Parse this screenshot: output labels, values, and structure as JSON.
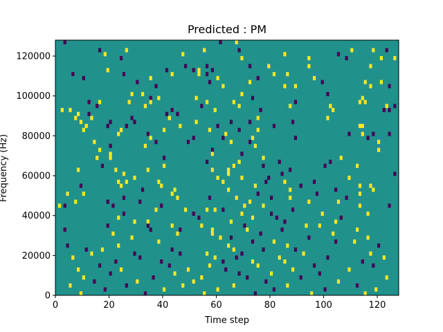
{
  "chart_data": {
    "type": "heatmap",
    "title": "Predicted : PM",
    "xlabel": "Time step",
    "ylabel": "Frequency (Hz)",
    "xlim": [
      0,
      128
    ],
    "ylim": [
      0,
      128000
    ],
    "x_ticks": [
      0,
      20,
      40,
      60,
      80,
      100,
      120
    ],
    "y_ticks": [
      0,
      20000,
      40000,
      60000,
      80000,
      100000,
      120000
    ],
    "n_time_steps": 128,
    "n_freq_bins": 64,
    "freq_bin_width_hz": 2000,
    "colormap": "viridis",
    "value_range": [
      -1,
      1
    ],
    "background_value": 0,
    "colors": {
      "low": "#440154",
      "mid": "#21918c",
      "high": "#fde725"
    },
    "nonzero_cells_note_units": "each entry is [time_step, freq_bin, value]",
    "cells": [
      [
        3,
        63,
        -1
      ],
      [
        61,
        63,
        -1
      ],
      [
        67,
        63,
        1
      ],
      [
        16,
        61,
        -1
      ],
      [
        26,
        61,
        1
      ],
      [
        55,
        61,
        1
      ],
      [
        68,
        61,
        -1
      ],
      [
        110,
        61,
        1
      ],
      [
        118,
        61,
        1
      ],
      [
        123,
        61,
        -1
      ],
      [
        18,
        60,
        1
      ],
      [
        47,
        60,
        1
      ],
      [
        85,
        60,
        1
      ],
      [
        105,
        60,
        -1
      ],
      [
        24,
        59,
        -1
      ],
      [
        69,
        59,
        1
      ],
      [
        94,
        59,
        1
      ],
      [
        108,
        59,
        -1
      ],
      [
        121,
        59,
        1
      ],
      [
        126,
        59,
        1
      ],
      [
        48,
        57,
        -1
      ],
      [
        56,
        57,
        -1
      ],
      [
        72,
        57,
        -1
      ],
      [
        79,
        57,
        1
      ],
      [
        94,
        57,
        1
      ],
      [
        117,
        57,
        1
      ],
      [
        19,
        56,
        1
      ],
      [
        41,
        56,
        -1
      ],
      [
        51,
        56,
        -1
      ],
      [
        53,
        56,
        1
      ],
      [
        58,
        56,
        -1
      ],
      [
        6,
        55,
        -1
      ],
      [
        25,
        55,
        -1
      ],
      [
        43,
        55,
        1
      ],
      [
        53,
        55,
        1
      ],
      [
        56,
        55,
        -1
      ],
      [
        81,
        55,
        1
      ],
      [
        86,
        55,
        1
      ],
      [
        10,
        54,
        -1
      ],
      [
        35,
        54,
        1
      ],
      [
        60,
        54,
        1
      ],
      [
        75,
        54,
        -1
      ],
      [
        96,
        54,
        1
      ],
      [
        30,
        53,
        -1
      ],
      [
        57,
        53,
        -1
      ],
      [
        72,
        53,
        1
      ],
      [
        99,
        53,
        -1
      ],
      [
        115,
        53,
        1
      ],
      [
        121,
        53,
        1
      ],
      [
        37,
        52,
        -1
      ],
      [
        62,
        52,
        1
      ],
      [
        85,
        52,
        1
      ],
      [
        89,
        52,
        1
      ],
      [
        117,
        52,
        1
      ],
      [
        124,
        52,
        -1
      ],
      [
        28,
        50,
        1
      ],
      [
        32,
        50,
        1
      ],
      [
        69,
        50,
        1
      ],
      [
        101,
        50,
        -1
      ],
      [
        35,
        49,
        -1
      ],
      [
        38,
        49,
        1
      ],
      [
        52,
        49,
        1
      ],
      [
        73,
        49,
        -1
      ],
      [
        114,
        49,
        1
      ],
      [
        12,
        48,
        -1
      ],
      [
        16,
        48,
        1
      ],
      [
        27,
        48,
        1
      ],
      [
        35,
        48,
        1
      ],
      [
        56,
        48,
        1
      ],
      [
        66,
        48,
        1
      ],
      [
        89,
        48,
        -1
      ],
      [
        113,
        48,
        1
      ],
      [
        115,
        48,
        1
      ],
      [
        15,
        47,
        -1
      ],
      [
        33,
        47,
        1
      ],
      [
        54,
        47,
        -1
      ],
      [
        68,
        47,
        1
      ],
      [
        87,
        47,
        1
      ],
      [
        102,
        47,
        1
      ],
      [
        123,
        47,
        1
      ],
      [
        126,
        47,
        -1
      ],
      [
        2,
        46,
        1
      ],
      [
        5,
        46,
        1
      ],
      [
        43,
        46,
        -1
      ],
      [
        59,
        46,
        1
      ],
      [
        76,
        46,
        -1
      ],
      [
        103,
        46,
        1
      ],
      [
        122,
        46,
        -1
      ],
      [
        124,
        46,
        -1
      ],
      [
        8,
        45,
        1
      ],
      [
        12,
        45,
        -1
      ],
      [
        41,
        45,
        -1
      ],
      [
        45,
        45,
        -1
      ],
      [
        7,
        44,
        1
      ],
      [
        13,
        44,
        1
      ],
      [
        28,
        44,
        -1
      ],
      [
        42,
        44,
        1
      ],
      [
        75,
        44,
        1
      ],
      [
        101,
        44,
        1
      ],
      [
        9,
        43,
        1
      ],
      [
        20,
        43,
        -1
      ],
      [
        29,
        43,
        -1
      ],
      [
        52,
        43,
        1
      ],
      [
        65,
        43,
        -1
      ],
      [
        72,
        43,
        -1
      ],
      [
        88,
        43,
        -1
      ],
      [
        11,
        42,
        1
      ],
      [
        19,
        42,
        -1
      ],
      [
        26,
        42,
        -1
      ],
      [
        46,
        42,
        1
      ],
      [
        60,
        42,
        -1
      ],
      [
        81,
        42,
        -1
      ],
      [
        113,
        42,
        1
      ],
      [
        114,
        42,
        1
      ],
      [
        10,
        41,
        1
      ],
      [
        24,
        41,
        1
      ],
      [
        40,
        41,
        1
      ],
      [
        57,
        41,
        1
      ],
      [
        68,
        41,
        -1
      ],
      [
        75,
        41,
        1
      ],
      [
        23,
        40,
        1
      ],
      [
        34,
        40,
        -1
      ],
      [
        63,
        40,
        1
      ],
      [
        109,
        40,
        -1
      ],
      [
        114,
        40,
        1
      ],
      [
        118,
        40,
        -1
      ],
      [
        124,
        40,
        -1
      ],
      [
        35,
        39,
        1
      ],
      [
        51,
        39,
        -1
      ],
      [
        62,
        39,
        -1
      ],
      [
        73,
        39,
        1
      ],
      [
        89,
        39,
        -1
      ],
      [
        116,
        39,
        -1
      ],
      [
        14,
        38,
        1
      ],
      [
        37,
        38,
        -1
      ],
      [
        49,
        38,
        -1
      ],
      [
        65,
        38,
        1
      ],
      [
        72,
        38,
        -1
      ],
      [
        120,
        38,
        1
      ],
      [
        20,
        37,
        -1
      ],
      [
        33,
        37,
        1
      ],
      [
        74,
        37,
        1
      ],
      [
        16,
        36,
        1
      ],
      [
        58,
        36,
        -1
      ],
      [
        120,
        36,
        1
      ],
      [
        20,
        35,
        1
      ],
      [
        58,
        35,
        1
      ],
      [
        69,
        35,
        -1
      ],
      [
        15,
        34,
        1
      ],
      [
        20,
        34,
        1
      ],
      [
        40,
        34,
        -1
      ],
      [
        77,
        34,
        1
      ],
      [
        106,
        34,
        1
      ],
      [
        56,
        33,
        -1
      ],
      [
        68,
        33,
        1
      ],
      [
        83,
        33,
        -1
      ],
      [
        102,
        33,
        -1
      ],
      [
        17,
        32,
        -1
      ],
      [
        40,
        32,
        1
      ],
      [
        66,
        32,
        1
      ],
      [
        77,
        32,
        -1
      ],
      [
        100,
        32,
        -1
      ],
      [
        112,
        32,
        1
      ],
      [
        8,
        31,
        1
      ],
      [
        22,
        31,
        1
      ],
      [
        34,
        31,
        1
      ],
      [
        58,
        31,
        1
      ],
      [
        64,
        31,
        1
      ],
      [
        87,
        31,
        -1
      ],
      [
        25,
        30,
        1
      ],
      [
        64,
        30,
        1
      ],
      [
        84,
        30,
        -1
      ],
      [
        126,
        30,
        -1
      ],
      [
        29,
        29,
        1
      ],
      [
        60,
        29,
        1
      ],
      [
        69,
        29,
        1
      ],
      [
        79,
        29,
        -1
      ],
      [
        109,
        29,
        1
      ],
      [
        23,
        28,
        1
      ],
      [
        26,
        28,
        1
      ],
      [
        38,
        28,
        1
      ],
      [
        62,
        28,
        1
      ],
      [
        78,
        28,
        -1
      ],
      [
        85,
        28,
        1
      ],
      [
        96,
        28,
        -1
      ],
      [
        9,
        27,
        -1
      ],
      [
        24,
        27,
        1
      ],
      [
        39,
        27,
        1
      ],
      [
        74,
        27,
        1
      ],
      [
        91,
        27,
        -1
      ],
      [
        113,
        27,
        1
      ],
      [
        117,
        27,
        1
      ],
      [
        32,
        26,
        -1
      ],
      [
        44,
        26,
        1
      ],
      [
        64,
        26,
        1
      ],
      [
        87,
        26,
        1
      ],
      [
        104,
        26,
        -1
      ],
      [
        118,
        26,
        1
      ],
      [
        4,
        25,
        1
      ],
      [
        10,
        25,
        1
      ],
      [
        43,
        25,
        1
      ],
      [
        75,
        25,
        -1
      ],
      [
        97,
        25,
        -1
      ],
      [
        113,
        25,
        1
      ],
      [
        25,
        24,
        -1
      ],
      [
        45,
        24,
        1
      ],
      [
        57,
        24,
        -1
      ],
      [
        67,
        24,
        1
      ],
      [
        80,
        24,
        -1
      ],
      [
        87,
        24,
        1
      ],
      [
        108,
        24,
        -1
      ],
      [
        7,
        23,
        1
      ],
      [
        19,
        23,
        -1
      ],
      [
        31,
        23,
        -1
      ],
      [
        72,
        23,
        1
      ],
      [
        94,
        23,
        1
      ],
      [
        105,
        23,
        1
      ],
      [
        1,
        22,
        1
      ],
      [
        3,
        22,
        -1
      ],
      [
        21,
        22,
        -1
      ],
      [
        39,
        22,
        -1
      ],
      [
        70,
        22,
        1
      ],
      [
        77,
        22,
        1
      ],
      [
        113,
        22,
        1
      ],
      [
        124,
        22,
        -1
      ],
      [
        37,
        21,
        1
      ],
      [
        48,
        21,
        1
      ],
      [
        56,
        21,
        1
      ],
      [
        59,
        21,
        1
      ],
      [
        62,
        21,
        -1
      ],
      [
        88,
        21,
        -1
      ],
      [
        25,
        20,
        -1
      ],
      [
        51,
        20,
        -1
      ],
      [
        69,
        20,
        1
      ],
      [
        80,
        20,
        -1
      ],
      [
        99,
        20,
        1
      ],
      [
        116,
        20,
        1
      ],
      [
        23,
        19,
        1
      ],
      [
        53,
        19,
        -1
      ],
      [
        73,
        19,
        1
      ],
      [
        82,
        19,
        -1
      ],
      [
        106,
        19,
        -1
      ],
      [
        29,
        18,
        1
      ],
      [
        34,
        18,
        1
      ],
      [
        65,
        18,
        1
      ],
      [
        85,
        18,
        -1
      ],
      [
        104,
        18,
        1
      ],
      [
        19,
        17,
        -1
      ],
      [
        34,
        17,
        -1
      ],
      [
        43,
        17,
        1
      ],
      [
        54,
        17,
        1
      ],
      [
        70,
        17,
        -1
      ],
      [
        93,
        17,
        1
      ],
      [
        98,
        17,
        1
      ],
      [
        3,
        16,
        -1
      ],
      [
        35,
        16,
        -1
      ],
      [
        46,
        16,
        -1
      ],
      [
        58,
        16,
        1
      ],
      [
        71,
        16,
        1
      ],
      [
        84,
        16,
        -1
      ],
      [
        112,
        16,
        1
      ],
      [
        21,
        15,
        1
      ],
      [
        45,
        15,
        1
      ],
      [
        58,
        15,
        1
      ],
      [
        76,
        15,
        -1
      ],
      [
        103,
        15,
        1
      ],
      [
        28,
        14,
        1
      ],
      [
        61,
        14,
        1
      ],
      [
        65,
        14,
        -1
      ],
      [
        94,
        14,
        -1
      ],
      [
        116,
        14,
        1
      ],
      [
        38,
        13,
        1
      ],
      [
        73,
        13,
        -1
      ],
      [
        81,
        13,
        1
      ],
      [
        104,
        13,
        -1
      ],
      [
        111,
        13,
        1
      ],
      [
        4,
        12,
        -1
      ],
      [
        23,
        12,
        1
      ],
      [
        64,
        12,
        1
      ],
      [
        86,
        12,
        1
      ],
      [
        120,
        12,
        -1
      ],
      [
        11,
        11,
        -1
      ],
      [
        17,
        11,
        1
      ],
      [
        43,
        11,
        -1
      ],
      [
        66,
        11,
        1
      ],
      [
        77,
        11,
        -1
      ],
      [
        89,
        11,
        -1
      ],
      [
        13,
        10,
        1
      ],
      [
        29,
        10,
        -1
      ],
      [
        46,
        10,
        -1
      ],
      [
        56,
        10,
        1
      ],
      [
        69,
        10,
        -1
      ],
      [
        92,
        10,
        1
      ],
      [
        117,
        10,
        1
      ],
      [
        6,
        9,
        1
      ],
      [
        31,
        9,
        -1
      ],
      [
        59,
        9,
        1
      ],
      [
        67,
        9,
        -1
      ],
      [
        83,
        9,
        1
      ],
      [
        101,
        9,
        -1
      ],
      [
        122,
        9,
        1
      ],
      [
        22,
        8,
        -1
      ],
      [
        39,
        8,
        -1
      ],
      [
        62,
        8,
        -1
      ],
      [
        73,
        8,
        1
      ],
      [
        85,
        8,
        1
      ],
      [
        114,
        8,
        -1
      ],
      [
        16,
        7,
        -1
      ],
      [
        42,
        7,
        -1
      ],
      [
        57,
        7,
        1
      ],
      [
        75,
        7,
        1
      ],
      [
        96,
        7,
        -1
      ],
      [
        118,
        7,
        -1
      ],
      [
        8,
        6,
        1
      ],
      [
        24,
        6,
        1
      ],
      [
        49,
        6,
        1
      ],
      [
        63,
        6,
        -1
      ],
      [
        88,
        6,
        1
      ],
      [
        109,
        6,
        1
      ],
      [
        20,
        5,
        -1
      ],
      [
        44,
        5,
        1
      ],
      [
        68,
        5,
        -1
      ],
      [
        80,
        5,
        1
      ],
      [
        98,
        5,
        -1
      ],
      [
        10,
        4,
        1
      ],
      [
        36,
        4,
        -1
      ],
      [
        54,
        4,
        1
      ],
      [
        71,
        4,
        -1
      ],
      [
        91,
        4,
        -1
      ],
      [
        123,
        4,
        1
      ],
      [
        14,
        3,
        -1
      ],
      [
        30,
        3,
        1
      ],
      [
        51,
        3,
        1
      ],
      [
        78,
        3,
        -1
      ],
      [
        105,
        3,
        1
      ],
      [
        5,
        2,
        1
      ],
      [
        26,
        2,
        -1
      ],
      [
        47,
        2,
        1
      ],
      [
        66,
        2,
        1
      ],
      [
        86,
        2,
        1
      ],
      [
        112,
        2,
        -1
      ],
      [
        18,
        1,
        -1
      ],
      [
        40,
        1,
        1
      ],
      [
        60,
        1,
        1
      ],
      [
        81,
        1,
        -1
      ],
      [
        100,
        1,
        -1
      ],
      [
        119,
        1,
        1
      ],
      [
        9,
        0,
        1
      ],
      [
        33,
        0,
        -1
      ],
      [
        55,
        0,
        1
      ],
      [
        74,
        0,
        -1
      ],
      [
        95,
        0,
        1
      ],
      [
        115,
        0,
        1
      ]
    ]
  }
}
